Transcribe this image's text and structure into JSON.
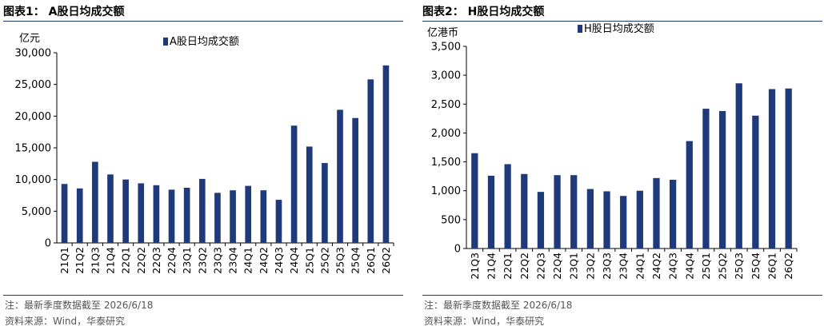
{
  "charts": [
    {
      "fig_title": "图表1：  A股日均成交额",
      "note": "注：最新季度数据截至 2026/6/18",
      "source": "资料来源：Wind，华泰研究",
      "unit": "亿元",
      "chart_data": {
        "type": "bar",
        "title": "A股日均成交额",
        "categories": [
          "21Q1",
          "21Q2",
          "21Q3",
          "21Q4",
          "22Q1",
          "22Q2",
          "22Q3",
          "22Q4",
          "23Q1",
          "23Q2",
          "23Q3",
          "23Q4",
          "24Q1",
          "24Q2",
          "24Q3",
          "24Q4",
          "25Q1",
          "25Q2",
          "25Q3",
          "25Q4",
          "26Q1",
          "26Q2"
        ],
        "series": [
          {
            "name": "A股日均成交额",
            "values": [
              9300,
              8600,
              12800,
              10800,
              10000,
              9400,
              9100,
              8400,
              8700,
              10100,
              7900,
              8300,
              9000,
              8300,
              6800,
              18500,
              15200,
              12600,
              21000,
              19700,
              25800,
              28000
            ]
          }
        ],
        "ylabel": "亿元",
        "ylim": [
          0,
          30000
        ],
        "yticks": [
          0,
          5000,
          10000,
          15000,
          20000,
          25000,
          30000
        ],
        "ytick_labels": [
          "0",
          "5,000",
          "10,000",
          "15,000",
          "20,000",
          "25,000",
          "30,000"
        ],
        "legend_position": "top",
        "grid": false,
        "bar_color": "#1f3a7a"
      }
    },
    {
      "fig_title": "图表2：  H股日均成交额",
      "note": "注：最新季度数据截至 2026/6/18",
      "source": "资料来源：Wind，华泰研究",
      "unit": "亿港币",
      "chart_data": {
        "type": "bar",
        "title": "H股日均成交额",
        "categories": [
          "21Q3",
          "21Q4",
          "22Q1",
          "22Q2",
          "22Q3",
          "22Q4",
          "23Q1",
          "23Q2",
          "23Q3",
          "23Q4",
          "24Q1",
          "24Q2",
          "24Q3",
          "24Q4",
          "25Q1",
          "25Q2",
          "25Q3",
          "25Q4",
          "26Q1",
          "26Q2"
        ],
        "series": [
          {
            "name": "H股日均成交额",
            "values": [
              1650,
              1260,
              1460,
              1290,
              980,
              1270,
              1270,
              1030,
              990,
              910,
              1000,
              1220,
              1190,
              1860,
              2420,
              2380,
              2860,
              2300,
              2760,
              2770
            ]
          }
        ],
        "ylabel": "亿港币",
        "ylim": [
          0,
          3500
        ],
        "yticks": [
          0,
          500,
          1000,
          1500,
          2000,
          2500,
          3000,
          3500
        ],
        "ytick_labels": [
          "0",
          "500",
          "1,000",
          "1,500",
          "2,000",
          "2,500",
          "3,000",
          "3,500"
        ],
        "legend_position": "top",
        "grid": false,
        "bar_color": "#1f3a7a"
      }
    }
  ]
}
